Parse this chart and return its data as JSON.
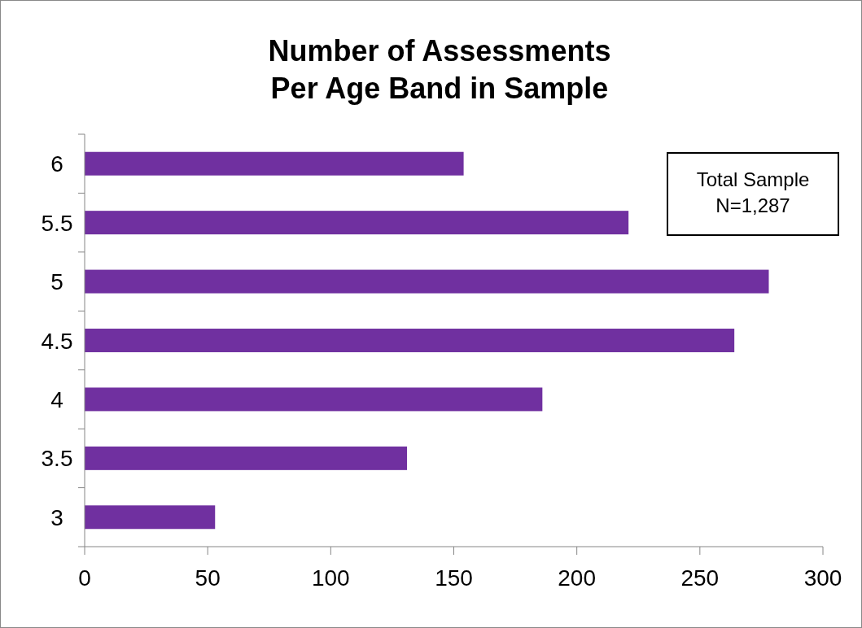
{
  "chart_data": {
    "type": "bar",
    "orientation": "horizontal",
    "title": "Number of Assessments\nPer Age Band in Sample",
    "categories": [
      "6",
      "5.5",
      "5",
      "4.5",
      "4",
      "3.5",
      "3"
    ],
    "values": [
      154,
      221,
      278,
      264,
      186,
      131,
      53
    ],
    "color": "#7030a0",
    "xlim": [
      0,
      300
    ],
    "xticks": [
      0,
      50,
      100,
      150,
      200,
      250,
      300
    ],
    "grid": false,
    "annotations": [
      "Total Sample\nN=1,287"
    ]
  }
}
